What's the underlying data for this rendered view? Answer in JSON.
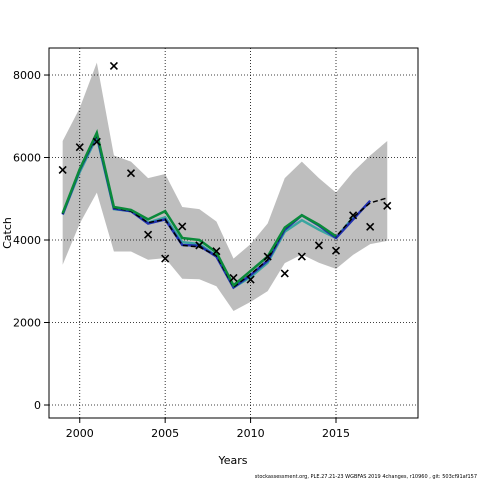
{
  "chart_data": {
    "type": "line",
    "x_label": "Years",
    "y_label": "Catch",
    "footer": "stockassessment.org, PLE.27.21-23 WGBFAS 2019 4changes, r10960 , git: 503cf91af157",
    "x": [
      1999,
      2000,
      2001,
      2002,
      2003,
      2004,
      2005,
      2006,
      2007,
      2008,
      2009,
      2010,
      2011,
      2012,
      2013,
      2014,
      2015,
      2016,
      2017,
      2018
    ],
    "band": {
      "color": "#bebebe",
      "upper": [
        6400,
        7200,
        8300,
        6050,
        5900,
        5500,
        5600,
        4800,
        4750,
        4450,
        3550,
        3900,
        4400,
        5500,
        5900,
        5500,
        5150,
        5650,
        6050,
        6400
      ],
      "lower": [
        3400,
        4400,
        5150,
        3720,
        3720,
        3520,
        3560,
        3060,
        3050,
        2880,
        2280,
        2500,
        2760,
        3440,
        3650,
        3450,
        3300,
        3640,
        3900,
        3980
      ]
    },
    "series": [
      {
        "color": "#3aa6a0",
        "dash": false,
        "values": [
          4620,
          5650,
          6500,
          4750,
          4700,
          4420,
          4550,
          3950,
          3900,
          3620,
          2850,
          3100,
          3450,
          4200,
          4480,
          4250,
          4050,
          4550,
          null,
          null
        ]
      },
      {
        "color": "#2030b0",
        "dash": false,
        "values": [
          4620,
          5700,
          6550,
          4760,
          4700,
          4400,
          4500,
          3880,
          3860,
          3600,
          2850,
          3150,
          3500,
          4250,
          4600,
          4350,
          4050,
          4500,
          4950,
          null
        ]
      },
      {
        "color": "#000000",
        "dash": true,
        "values": [
          4640,
          5700,
          6550,
          4780,
          4700,
          4420,
          4500,
          3870,
          3830,
          3620,
          2860,
          3170,
          3520,
          4280,
          4600,
          4380,
          4080,
          4550,
          4900,
          5020
        ]
      },
      {
        "color": "#0a8a3a",
        "dash": false,
        "values": [
          4650,
          5720,
          6600,
          4800,
          4730,
          4500,
          4700,
          4050,
          4000,
          3700,
          2900,
          3250,
          3600,
          4300,
          4600,
          4370,
          4090,
          null,
          null,
          null
        ]
      }
    ],
    "points": {
      "color": "#000000",
      "values": [
        5700,
        6250,
        6380,
        8220,
        5620,
        4130,
        3550,
        4330,
        3870,
        3730,
        3080,
        3040,
        3600,
        3190,
        3600,
        3870,
        3740,
        4600,
        4320,
        4830
      ]
    },
    "xlim": [
      1998.2,
      2019.8
    ],
    "ylim": [
      -315,
      8655
    ],
    "xticks": [
      2000,
      2005,
      2010,
      2015
    ],
    "yticks": [
      0,
      2000,
      4000,
      6000,
      8000
    ],
    "grid": true
  }
}
